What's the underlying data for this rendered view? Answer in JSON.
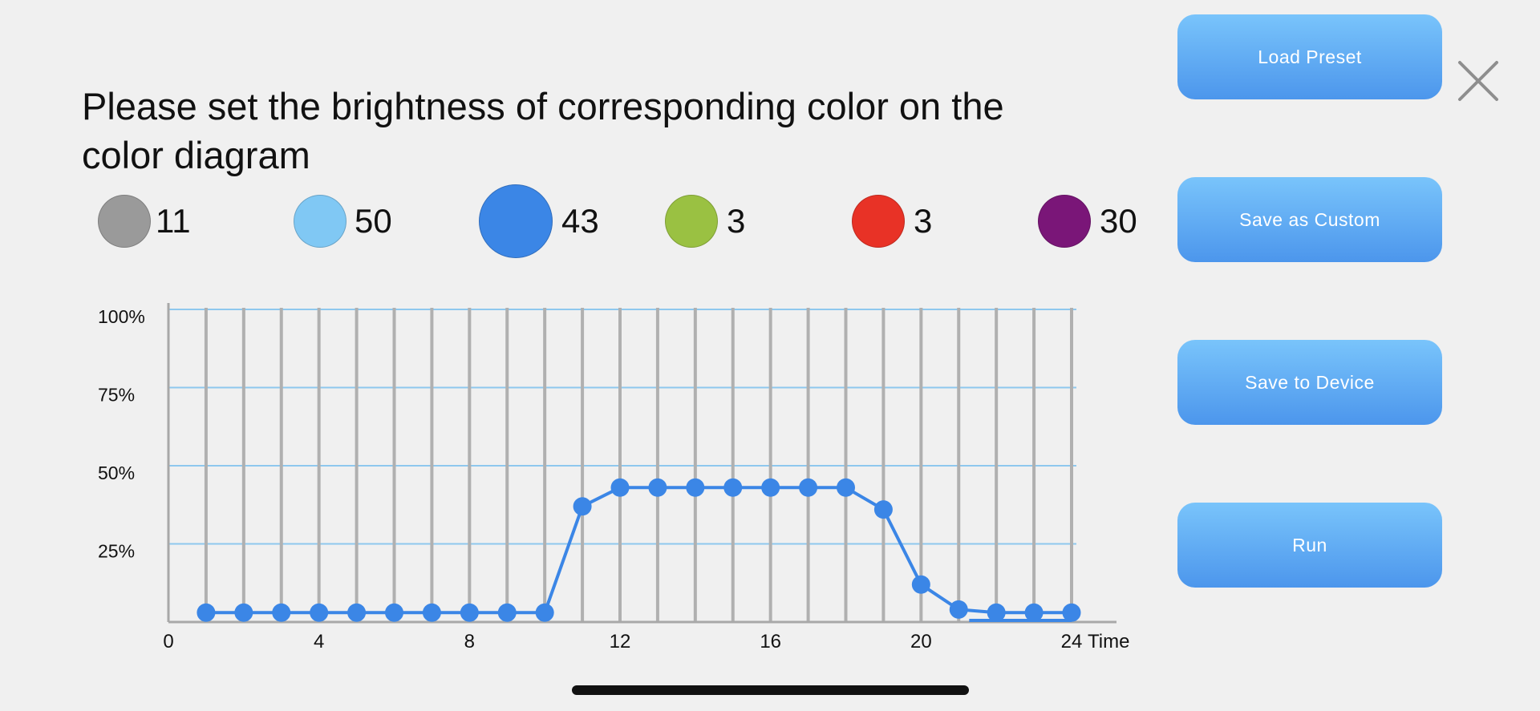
{
  "heading": "Please set the brightness of corresponding color on the color diagram",
  "colors": [
    {
      "name": "gray",
      "hex": "#9a9a9a",
      "value": "11"
    },
    {
      "name": "light-blue",
      "hex": "#80c8f4",
      "value": "50"
    },
    {
      "name": "blue",
      "hex": "#3b86e6",
      "value": "43",
      "selected": true
    },
    {
      "name": "green",
      "hex": "#9ac142",
      "value": "3"
    },
    {
      "name": "red",
      "hex": "#e83226",
      "value": "3"
    },
    {
      "name": "purple",
      "hex": "#7a1678",
      "value": "30"
    }
  ],
  "buttons": {
    "load_preset": "Load Preset",
    "save_custom": "Save as Custom",
    "save_device": "Save to Device",
    "run": "Run"
  },
  "close_icon": "close-icon",
  "chart_data": {
    "type": "line",
    "series": [
      {
        "color": "#3b86e6",
        "x": [
          1,
          2,
          3,
          4,
          5,
          6,
          7,
          8,
          9,
          10,
          11,
          12,
          13,
          14,
          15,
          16,
          17,
          18,
          19,
          20,
          21,
          22,
          23,
          24
        ],
        "values": [
          3,
          3,
          3,
          3,
          3,
          3,
          3,
          3,
          3,
          3,
          37,
          43,
          43,
          43,
          43,
          43,
          43,
          43,
          36,
          12,
          4,
          3,
          3,
          3
        ]
      }
    ],
    "x_tick_labels": [
      "0",
      "4",
      "8",
      "12",
      "16",
      "20",
      "24"
    ],
    "x_ticks": [
      0,
      4,
      8,
      12,
      16,
      20,
      24
    ],
    "xlabel": "Time",
    "y_tick_labels": [
      "100%",
      "75%",
      "50%",
      "25%"
    ],
    "y_ticks": [
      100,
      75,
      50,
      25
    ],
    "xlim": [
      0,
      24
    ],
    "ylim": [
      0,
      100
    ],
    "grid": true
  }
}
